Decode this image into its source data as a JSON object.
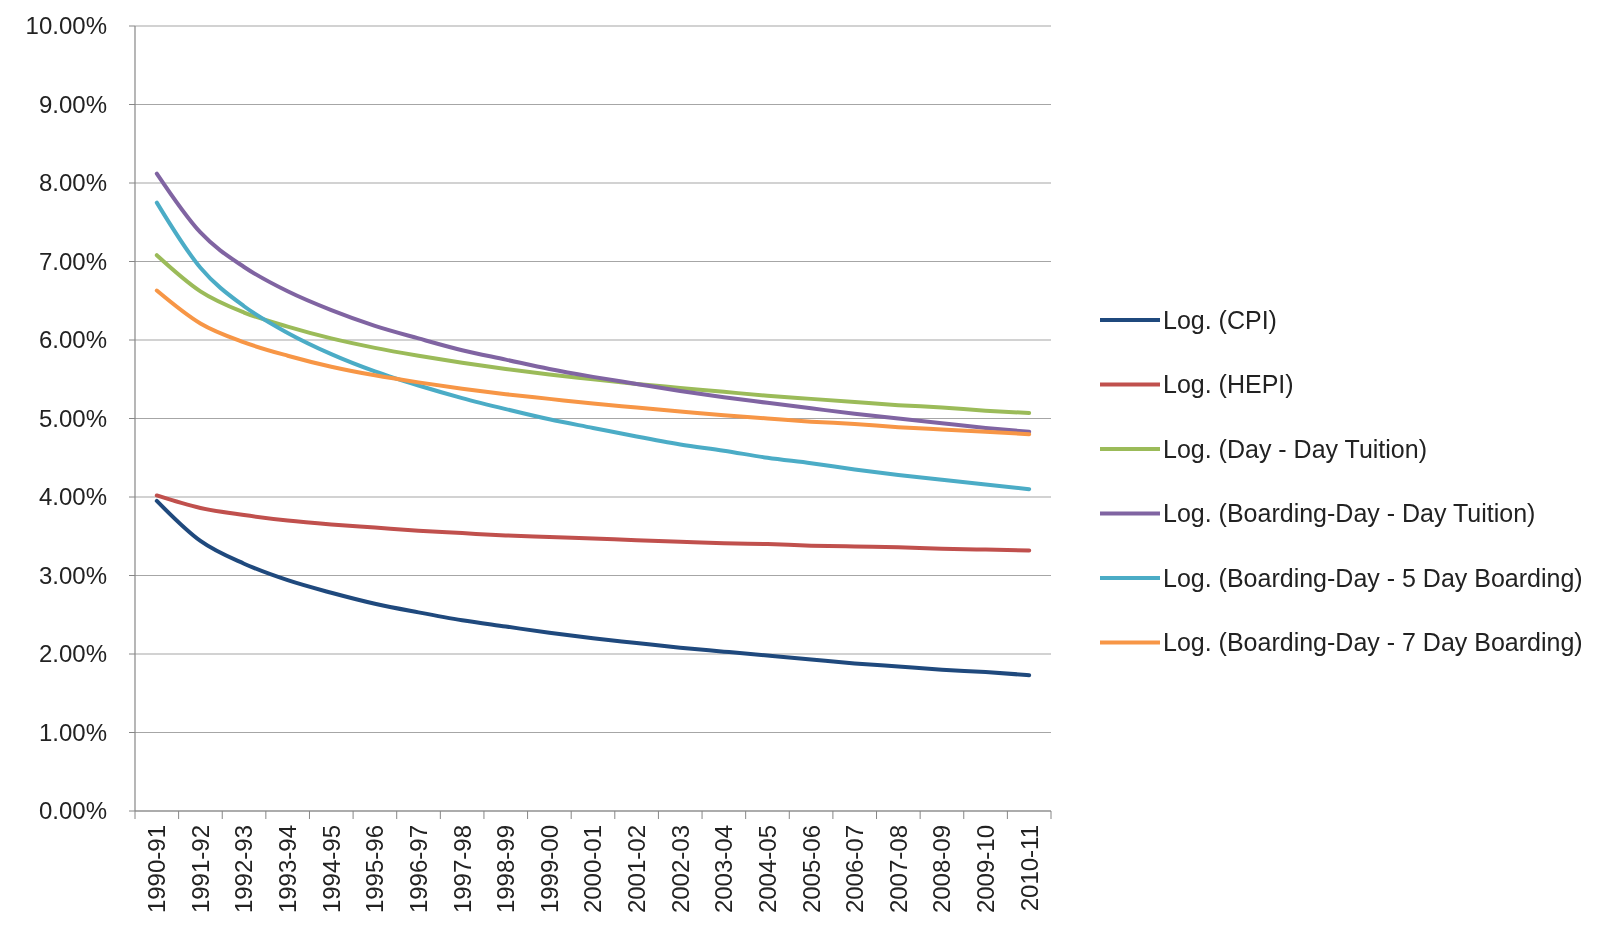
{
  "chart_data": {
    "type": "line",
    "categories": [
      "1990-91",
      "1991-92",
      "1992-93",
      "1993-94",
      "1994-95",
      "1995-96",
      "1996-97",
      "1997-98",
      "1998-99",
      "1999-00",
      "2000-01",
      "2001-02",
      "2002-03",
      "2003-04",
      "2004-05",
      "2005-06",
      "2006-07",
      "2007-08",
      "2008-09",
      "2009-10",
      "2010-11"
    ],
    "ylim": [
      0,
      10
    ],
    "yticks": [
      {
        "value": 0,
        "label": "0.00%"
      },
      {
        "value": 1,
        "label": "1.00%"
      },
      {
        "value": 2,
        "label": "2.00%"
      },
      {
        "value": 3,
        "label": "3.00%"
      },
      {
        "value": 4,
        "label": "4.00%"
      },
      {
        "value": 5,
        "label": "5.00%"
      },
      {
        "value": 6,
        "label": "6.00%"
      },
      {
        "value": 7,
        "label": "7.00%"
      },
      {
        "value": 8,
        "label": "8.00%"
      },
      {
        "value": 9,
        "label": "9.00%"
      },
      {
        "value": 10,
        "label": "10.00%"
      }
    ],
    "grid": "y",
    "legend": "right",
    "marker": "none",
    "line_style": "solid",
    "series": [
      {
        "name": "Log. (CPI)",
        "color": "#1f497d",
        "values": [
          3.95,
          3.44,
          3.15,
          2.94,
          2.78,
          2.64,
          2.53,
          2.43,
          2.35,
          2.27,
          2.2,
          2.14,
          2.08,
          2.03,
          1.98,
          1.93,
          1.88,
          1.84,
          1.8,
          1.77,
          1.73
        ]
      },
      {
        "name": "Log. (HEPI)",
        "color": "#c0504d",
        "values": [
          4.02,
          3.86,
          3.77,
          3.7,
          3.65,
          3.61,
          3.57,
          3.54,
          3.51,
          3.49,
          3.47,
          3.45,
          3.43,
          3.41,
          3.4,
          3.38,
          3.37,
          3.36,
          3.34,
          3.33,
          3.32
        ]
      },
      {
        "name": "Log. (Day - Day Tuition)",
        "color": "#9bbb59",
        "values": [
          7.08,
          6.62,
          6.35,
          6.17,
          6.02,
          5.9,
          5.8,
          5.71,
          5.63,
          5.56,
          5.5,
          5.44,
          5.39,
          5.34,
          5.29,
          5.25,
          5.21,
          5.17,
          5.14,
          5.1,
          5.07
        ]
      },
      {
        "name": "Log. (Boarding-Day - Day Tuition)",
        "color": "#8064a2",
        "values": [
          8.12,
          7.37,
          6.93,
          6.62,
          6.38,
          6.18,
          6.02,
          5.87,
          5.75,
          5.63,
          5.53,
          5.44,
          5.35,
          5.27,
          5.2,
          5.13,
          5.06,
          5,
          4.94,
          4.88,
          4.83
        ]
      },
      {
        "name": "Log. (Boarding-Day - 5 Day Boarding)",
        "color": "#4bacc6",
        "values": [
          7.75,
          6.92,
          6.43,
          6.09,
          5.82,
          5.6,
          5.42,
          5.26,
          5.12,
          4.99,
          4.88,
          4.77,
          4.67,
          4.59,
          4.5,
          4.43,
          4.35,
          4.28,
          4.22,
          4.16,
          4.1
        ]
      },
      {
        "name": "Log. (Boarding-Day - 7 Day Boarding)",
        "color": "#f79646",
        "values": [
          6.63,
          6.21,
          5.97,
          5.8,
          5.66,
          5.55,
          5.46,
          5.38,
          5.31,
          5.25,
          5.19,
          5.14,
          5.09,
          5.04,
          5,
          4.96,
          4.93,
          4.89,
          4.86,
          4.83,
          4.8
        ]
      }
    ]
  }
}
